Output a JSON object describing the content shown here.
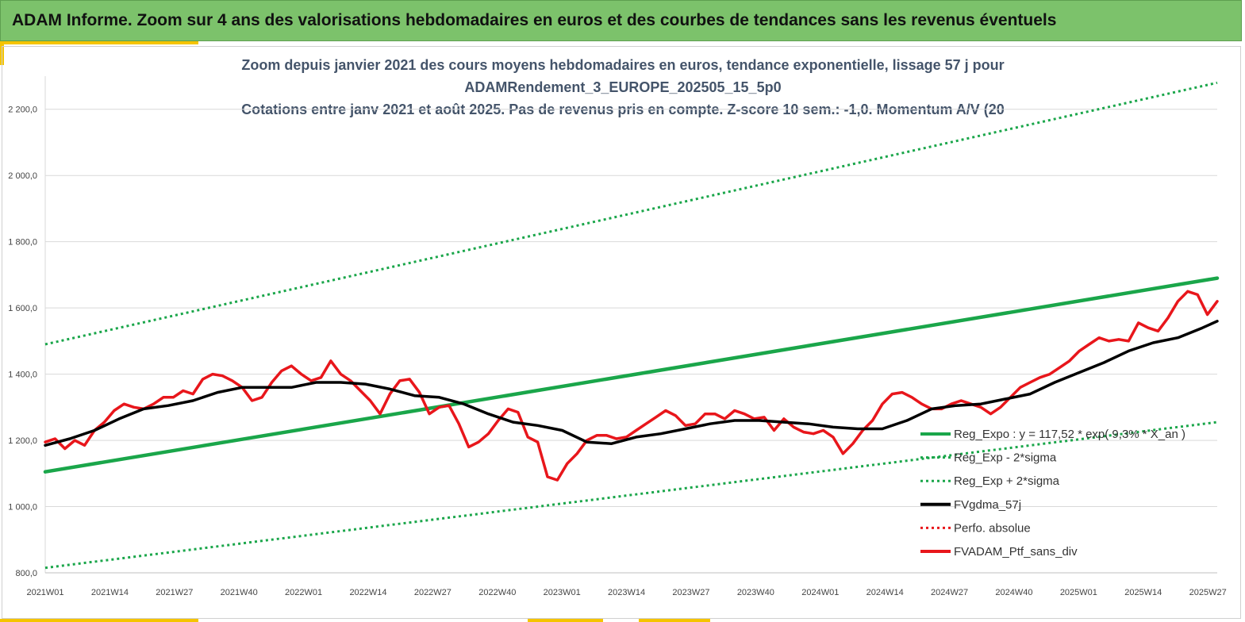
{
  "banner": {
    "title": "ADAM Informe. Zoom sur 4 ans des valorisations hebdomadaires en euros et des courbes de tendances sans les revenus éventuels"
  },
  "colors": {
    "banner": "#7cc26b",
    "accent": "#f5c400",
    "trend_green": "#1aa64a",
    "moving_avg": "#000000",
    "portfolio": "#e8161b",
    "title_text": "#44546a"
  },
  "chart_data": {
    "type": "line",
    "title_lines": [
      "Zoom depuis janvier 2021 des cours moyens hebdomadaires  en euros, tendance exponentielle, lissage 57 j pour",
      "ADAMRendement_3_EUROPE_202505_15_5p0",
      "Cotations  entre janv 2021 et août 2025. Pas de revenus pris en compte. Z-score 10 sem.: -1,0. Momentum A/V (20"
    ],
    "xlabel": "",
    "ylabel": "",
    "x_ticks": [
      "2021W01",
      "2021W14",
      "2021W27",
      "2021W40",
      "2022W01",
      "2022W14",
      "2022W27",
      "2022W40",
      "2023W01",
      "2023W14",
      "2023W27",
      "2023W40",
      "2024W01",
      "2024W14",
      "2024W27",
      "2024W40",
      "2025W01",
      "2025W14",
      "2025W27"
    ],
    "x_range_weeks": [
      0,
      238
    ],
    "y_ticks": [
      "800,0",
      "1 000,0",
      "1 200,0",
      "1 400,0",
      "1 600,0",
      "1 800,0",
      "2 000,0",
      "2 200,0"
    ],
    "ylim": [
      800,
      2300
    ],
    "grid": "horizontal",
    "legend_position": "bottom-right",
    "series": [
      {
        "name": "Reg_Expo : y = 117,52 * exp( 9,3% * X_an )",
        "style": "solid-green",
        "x": [
          0,
          238
        ],
        "values": [
          1105,
          1690
        ]
      },
      {
        "name": "Reg_Exp - 2*sigma",
        "style": "dotted-green",
        "x": [
          0,
          238
        ],
        "values": [
          815,
          1255
        ]
      },
      {
        "name": "Reg_Exp + 2*sigma",
        "style": "dotted-green",
        "x": [
          0,
          238
        ],
        "values": [
          1490,
          2280
        ]
      },
      {
        "name": "FVgdma_57j",
        "style": "solid-black",
        "x": [
          0,
          5,
          10,
          15,
          20,
          25,
          30,
          35,
          40,
          45,
          50,
          55,
          60,
          65,
          70,
          75,
          80,
          85,
          90,
          95,
          100,
          105,
          110,
          115,
          120,
          125,
          130,
          135,
          140,
          145,
          150,
          155,
          160,
          165,
          170,
          175,
          180,
          185,
          190,
          195,
          200,
          205,
          210,
          215,
          220,
          225,
          230,
          235,
          238
        ],
        "values": [
          1185,
          1205,
          1230,
          1265,
          1295,
          1305,
          1320,
          1345,
          1360,
          1360,
          1360,
          1375,
          1375,
          1370,
          1355,
          1335,
          1330,
          1310,
          1280,
          1255,
          1245,
          1230,
          1195,
          1190,
          1210,
          1220,
          1235,
          1250,
          1260,
          1260,
          1255,
          1250,
          1240,
          1235,
          1235,
          1260,
          1295,
          1305,
          1310,
          1325,
          1340,
          1375,
          1405,
          1435,
          1470,
          1495,
          1510,
          1540,
          1560
        ]
      },
      {
        "name": "Perfo. absolue",
        "style": "dotted-red",
        "x": [],
        "values": []
      },
      {
        "name": "FVADAM_Ptf_sans_div",
        "style": "solid-red",
        "x": [
          0,
          2,
          4,
          6,
          8,
          10,
          12,
          14,
          16,
          18,
          20,
          22,
          24,
          26,
          28,
          30,
          32,
          34,
          36,
          38,
          40,
          42,
          44,
          46,
          48,
          50,
          52,
          54,
          56,
          58,
          60,
          62,
          64,
          66,
          68,
          70,
          72,
          74,
          76,
          78,
          80,
          82,
          84,
          86,
          88,
          90,
          92,
          94,
          96,
          98,
          100,
          102,
          104,
          106,
          108,
          110,
          112,
          114,
          116,
          118,
          120,
          122,
          124,
          126,
          128,
          130,
          132,
          134,
          136,
          138,
          140,
          142,
          144,
          146,
          148,
          150,
          152,
          154,
          156,
          158,
          160,
          162,
          164,
          166,
          168,
          170,
          172,
          174,
          176,
          178,
          180,
          182,
          184,
          186,
          188,
          190,
          192,
          194,
          196,
          198,
          200,
          202,
          204,
          206,
          208,
          210,
          212,
          214,
          216,
          218,
          220,
          222,
          224,
          226,
          228,
          230,
          232,
          234,
          236,
          238
        ],
        "values": [
          1195,
          1205,
          1175,
          1200,
          1185,
          1230,
          1255,
          1290,
          1310,
          1300,
          1295,
          1310,
          1330,
          1330,
          1350,
          1340,
          1385,
          1400,
          1395,
          1380,
          1360,
          1320,
          1330,
          1375,
          1410,
          1425,
          1400,
          1380,
          1390,
          1440,
          1400,
          1380,
          1350,
          1320,
          1280,
          1340,
          1380,
          1385,
          1345,
          1280,
          1300,
          1305,
          1250,
          1180,
          1195,
          1220,
          1260,
          1295,
          1285,
          1210,
          1195,
          1090,
          1080,
          1130,
          1160,
          1200,
          1215,
          1215,
          1205,
          1210,
          1230,
          1250,
          1270,
          1290,
          1275,
          1245,
          1250,
          1280,
          1280,
          1265,
          1290,
          1280,
          1265,
          1270,
          1230,
          1265,
          1240,
          1225,
          1220,
          1230,
          1210,
          1160,
          1190,
          1230,
          1260,
          1310,
          1340,
          1345,
          1330,
          1310,
          1295,
          1295,
          1310,
          1320,
          1310,
          1300,
          1280,
          1300,
          1330,
          1360,
          1375,
          1390,
          1400,
          1420,
          1440,
          1470,
          1490,
          1510,
          1500,
          1505,
          1500,
          1555,
          1540,
          1530,
          1570,
          1620,
          1650,
          1640,
          1580,
          1620
        ]
      }
    ],
    "legend_items": [
      {
        "label": "Reg_Expo : y = 117,52 * exp( 9,3% * X_an )",
        "swatch": "solid-green"
      },
      {
        "label": "Reg_Exp - 2*sigma",
        "swatch": "dotted-green"
      },
      {
        "label": "Reg_Exp + 2*sigma",
        "swatch": "dotted-green"
      },
      {
        "label": "FVgdma_57j",
        "swatch": "solid-black"
      },
      {
        "label": "Perfo. absolue",
        "swatch": "dotted-red"
      },
      {
        "label": "FVADAM_Ptf_sans_div",
        "swatch": "solid-red"
      }
    ]
  }
}
